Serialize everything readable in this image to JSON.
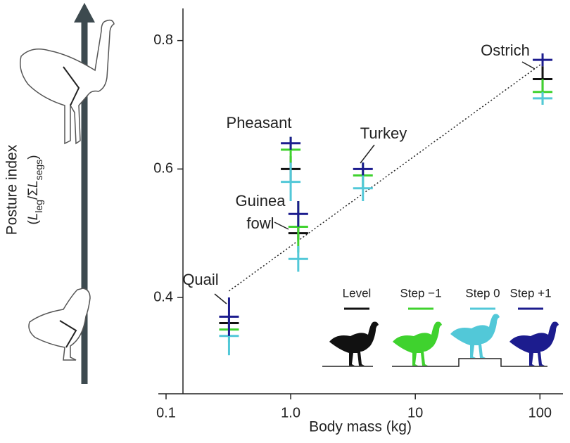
{
  "chart_data": {
    "type": "errorbar",
    "xlabel": "Body mass (kg)",
    "ylabel": "Posture index",
    "ylabel_formula": [
      {
        "text": "("
      },
      {
        "text": "L",
        "italic": true
      },
      {
        "text": "leg",
        "sub": true
      },
      {
        "text": "/Σ"
      },
      {
        "text": "L",
        "italic": true
      },
      {
        "text": "segs",
        "sub": true
      },
      {
        "text": ")"
      }
    ],
    "categories": [
      "Quail",
      "Guinea\nfowl",
      "Pheasant",
      "Turkey",
      "Ostrich"
    ],
    "x": [
      0.32,
      1.15,
      1.0,
      3.8,
      105
    ],
    "series": [
      {
        "name": "Level",
        "color": "#111111",
        "values": [
          0.36,
          0.5,
          0.6,
          null,
          0.74
        ],
        "errors": [
          0.01,
          0.01,
          0.02,
          null,
          0.02
        ]
      },
      {
        "name": "Step −1",
        "color": "#3fd22e",
        "values": [
          0.35,
          0.51,
          0.63,
          0.59,
          0.72
        ],
        "errors": [
          0.02,
          0.04,
          0.02,
          0.02,
          0.02
        ]
      },
      {
        "name": "Step 0",
        "color": "#52c8d8",
        "values": [
          0.34,
          0.46,
          0.58,
          0.57,
          0.71
        ],
        "errors": [
          0.03,
          0.02,
          0.03,
          0.02,
          0.01
        ]
      },
      {
        "name": "Step +1",
        "color": "#1c1c8e",
        "values": [
          0.37,
          0.53,
          0.64,
          0.6,
          0.77
        ],
        "errors": [
          0.03,
          0.02,
          0.01,
          0.01,
          0.01
        ]
      }
    ],
    "trend": {
      "x": [
        0.32,
        105
      ],
      "y": [
        0.41,
        0.765
      ]
    },
    "xlog": true,
    "xlim": [
      0.0867,
      153
    ],
    "xticks": [
      0.1,
      {
        "value": 1,
        "label": "1.0"
      },
      10,
      100
    ],
    "ylim": [
      0.25,
      0.85
    ],
    "yticks": [
      0.4,
      0.6,
      0.8
    ]
  }
}
